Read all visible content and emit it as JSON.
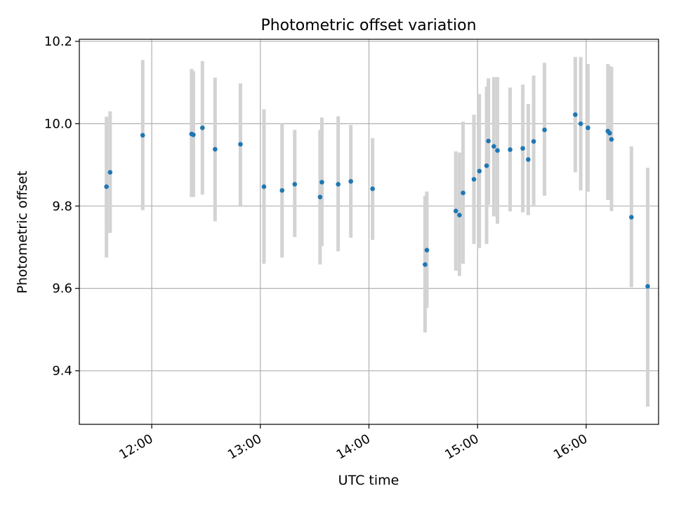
{
  "chart_data": {
    "type": "scatter",
    "title": "Photometric offset variation",
    "xlabel": "UTC time",
    "ylabel": "Photometric offset",
    "x_tick_labels": [
      "12:00",
      "13:00",
      "14:00",
      "15:00",
      "16:00"
    ],
    "y_tick_labels": [
      "9.4",
      "9.6",
      "9.8",
      "10.0",
      "10.2"
    ],
    "xlim": [
      "11:20",
      "16:40"
    ],
    "ylim": [
      9.27,
      10.205
    ],
    "grid": true,
    "colors": {
      "marker": "#1f77b4",
      "errorbar": "#d3d3d3",
      "grid": "#b0b0b0",
      "axes": "#000000"
    },
    "series": [
      {
        "points": [
          {
            "x": "11:35",
            "y": 9.847,
            "lo": 9.675,
            "hi": 10.017
          },
          {
            "x": "11:37",
            "y": 9.882,
            "lo": 9.735,
            "hi": 10.03
          },
          {
            "x": "11:55",
            "y": 9.972,
            "lo": 9.79,
            "hi": 10.155
          },
          {
            "x": "12:22",
            "y": 9.975,
            "lo": 9.822,
            "hi": 10.133
          },
          {
            "x": "12:23",
            "y": 9.973,
            "lo": 9.822,
            "hi": 10.128
          },
          {
            "x": "12:28",
            "y": 9.99,
            "lo": 9.828,
            "hi": 10.152
          },
          {
            "x": "12:35",
            "y": 9.938,
            "lo": 9.763,
            "hi": 10.112
          },
          {
            "x": "12:49",
            "y": 9.95,
            "lo": 9.8,
            "hi": 10.098
          },
          {
            "x": "13:02",
            "y": 9.847,
            "lo": 9.66,
            "hi": 10.035
          },
          {
            "x": "13:12",
            "y": 9.838,
            "lo": 9.675,
            "hi": 10.0
          },
          {
            "x": "13:19",
            "y": 9.853,
            "lo": 9.725,
            "hi": 9.985
          },
          {
            "x": "13:33",
            "y": 9.822,
            "lo": 9.658,
            "hi": 9.985
          },
          {
            "x": "13:34",
            "y": 9.858,
            "lo": 9.703,
            "hi": 10.015
          },
          {
            "x": "13:43",
            "y": 9.853,
            "lo": 9.69,
            "hi": 10.018
          },
          {
            "x": "13:50",
            "y": 9.86,
            "lo": 9.723,
            "hi": 9.997
          },
          {
            "x": "14:02",
            "y": 9.842,
            "lo": 9.718,
            "hi": 9.965
          },
          {
            "x": "14:31",
            "y": 9.658,
            "lo": 9.493,
            "hi": 9.825
          },
          {
            "x": "14:32",
            "y": 9.693,
            "lo": 9.553,
            "hi": 9.835
          },
          {
            "x": "14:48",
            "y": 9.788,
            "lo": 9.643,
            "hi": 9.933
          },
          {
            "x": "14:50",
            "y": 9.778,
            "lo": 9.63,
            "hi": 9.93
          },
          {
            "x": "14:52",
            "y": 9.832,
            "lo": 9.66,
            "hi": 10.005
          },
          {
            "x": "14:58",
            "y": 9.865,
            "lo": 9.708,
            "hi": 10.022
          },
          {
            "x": "15:01",
            "y": 9.885,
            "lo": 9.698,
            "hi": 10.072
          },
          {
            "x": "15:05",
            "y": 9.898,
            "lo": 9.708,
            "hi": 10.09
          },
          {
            "x": "15:06",
            "y": 9.958,
            "lo": 9.803,
            "hi": 10.11
          },
          {
            "x": "15:09",
            "y": 9.945,
            "lo": 9.775,
            "hi": 10.113
          },
          {
            "x": "15:11",
            "y": 9.935,
            "lo": 9.757,
            "hi": 10.113
          },
          {
            "x": "15:18",
            "y": 9.937,
            "lo": 9.787,
            "hi": 10.088
          },
          {
            "x": "15:25",
            "y": 9.94,
            "lo": 9.785,
            "hi": 10.095
          },
          {
            "x": "15:28",
            "y": 9.913,
            "lo": 9.778,
            "hi": 10.048
          },
          {
            "x": "15:31",
            "y": 9.957,
            "lo": 9.802,
            "hi": 10.117
          },
          {
            "x": "15:37",
            "y": 9.985,
            "lo": 9.825,
            "hi": 10.148
          },
          {
            "x": "15:54",
            "y": 10.022,
            "lo": 9.882,
            "hi": 10.162
          },
          {
            "x": "15:57",
            "y": 10.0,
            "lo": 9.838,
            "hi": 10.162
          },
          {
            "x": "16:01",
            "y": 9.99,
            "lo": 9.835,
            "hi": 10.145
          },
          {
            "x": "16:12",
            "y": 9.982,
            "lo": 9.815,
            "hi": 10.145
          },
          {
            "x": "16:13",
            "y": 9.977,
            "lo": 9.818,
            "hi": 10.14
          },
          {
            "x": "16:14",
            "y": 9.962,
            "lo": 9.788,
            "hi": 10.138
          },
          {
            "x": "16:25",
            "y": 9.773,
            "lo": 9.603,
            "hi": 9.945
          },
          {
            "x": "16:34",
            "y": 9.605,
            "lo": 9.313,
            "hi": 9.893
          }
        ]
      }
    ]
  }
}
